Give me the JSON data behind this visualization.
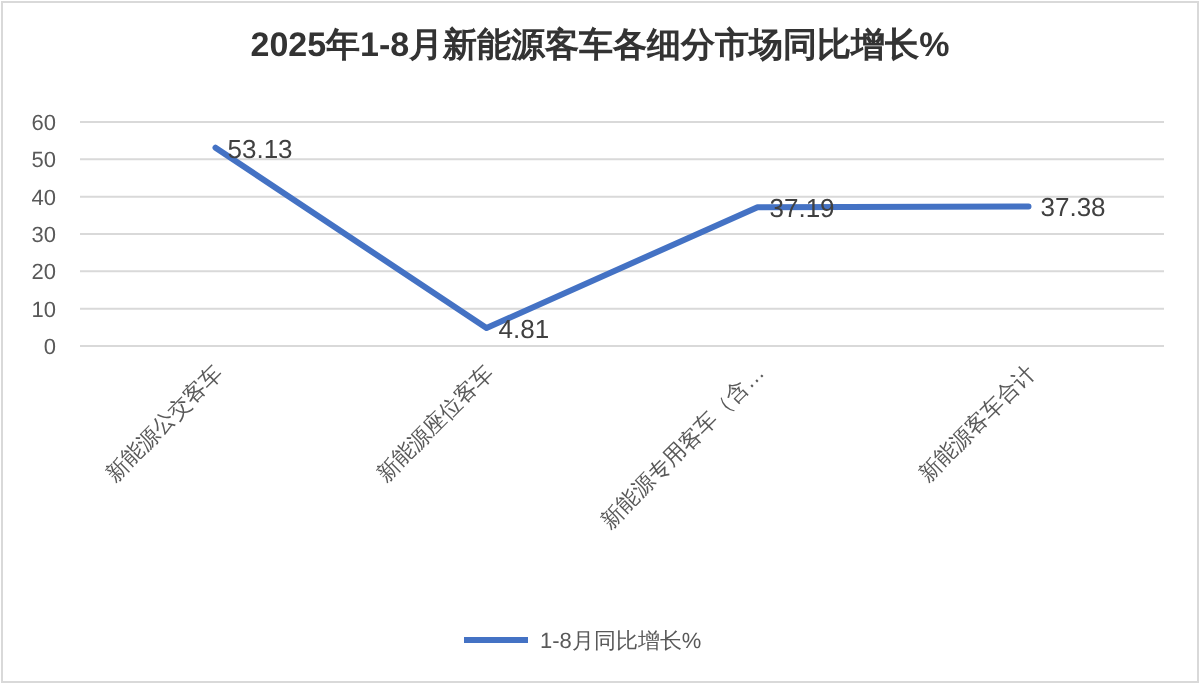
{
  "chart_data": {
    "type": "line",
    "title": "2025年1-8月新能源客车各细分市场同比增长%",
    "categories": [
      "新能源公交客车",
      "新能源座位客车",
      "新能源专用客车（含…",
      "新能源客车合计"
    ],
    "series": [
      {
        "name": "1-8月同比增长%",
        "color": "#4472c4",
        "values": [
          53.13,
          4.81,
          37.19,
          37.38
        ]
      }
    ],
    "ylim": [
      0,
      60
    ],
    "yticks": [
      0,
      10,
      20,
      30,
      40,
      50,
      60
    ],
    "grid": "y",
    "legend": "bottom",
    "data_labels": true
  }
}
